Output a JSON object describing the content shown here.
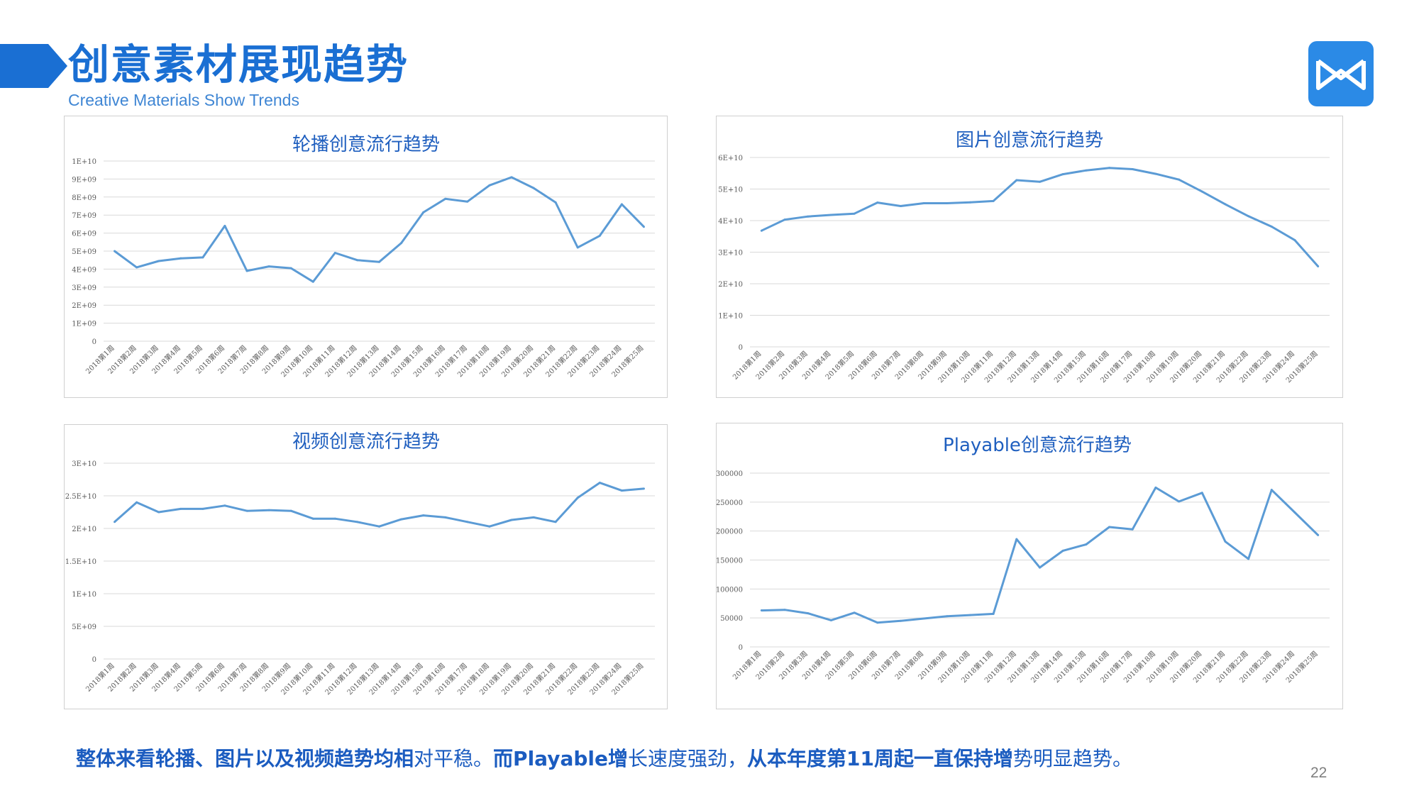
{
  "header": {
    "title": "创意素材展现趋势",
    "subtitle": "Creative Materials Show Trends"
  },
  "colors": {
    "accent": "#1a6fd3",
    "line": "#5b9bd5",
    "grid": "#d9d9d9",
    "logo": "#2b8ae6"
  },
  "footer": {
    "summary_a": "整体来看轮播、图片以及视频趋势均",
    "summary_b": "相",
    "summary_c": "对平稳。",
    "summary_d": "而Playable增",
    "summary_e": "长速度强劲，",
    "summary_f": "从本年度第11周起一直保持增",
    "summary_g": "势明显趋势。",
    "page_number": "22"
  },
  "chart_data": [
    {
      "type": "line",
      "title": "轮播创意流行趋势",
      "categories": [
        "2018第1周",
        "2018第2周",
        "2018第3周",
        "2018第4周",
        "2018第5周",
        "2018第6周",
        "2018第7周",
        "2018第8周",
        "2018第9周",
        "2018第10周",
        "2018第11周",
        "2018第12周",
        "2018第13周",
        "2018第14周",
        "2018第15周",
        "2018第16周",
        "2018第17周",
        "2018第18周",
        "2018第19周",
        "2018第20周",
        "2018第21周",
        "2018第22周",
        "2018第23周",
        "2018第24周",
        "2018第25周"
      ],
      "values": [
        5000000000,
        4100000000,
        4450000000,
        4600000000,
        4650000000,
        6400000000,
        3900000000,
        4150000000,
        4050000000,
        3300000000,
        4900000000,
        4500000000,
        4400000000,
        5450000000,
        7150000000,
        7900000000,
        7750000000,
        8650000000,
        9100000000,
        8500000000,
        7700000000,
        5200000000,
        5850000000,
        7600000000,
        6350000000
      ],
      "ylim": [
        0,
        10000000000
      ],
      "yticks": [
        "0",
        "1E+09",
        "2E+09",
        "3E+09",
        "4E+09",
        "5E+09",
        "6E+09",
        "7E+09",
        "8E+09",
        "9E+09",
        "1E+10"
      ],
      "grid": true
    },
    {
      "type": "line",
      "title": "图片创意流行趋势",
      "categories": [
        "2018第1周",
        "2018第2周",
        "2018第3周",
        "2018第4周",
        "2018第5周",
        "2018第6周",
        "2018第7周",
        "2018第8周",
        "2018第9周",
        "2018第10周",
        "2018第11周",
        "2018第12周",
        "2018第13周",
        "2018第14周",
        "2018第15周",
        "2018第16周",
        "2018第17周",
        "2018第18周",
        "2018第19周",
        "2018第20周",
        "2018第21周",
        "2018第22周",
        "2018第23周",
        "2018第24周",
        "2018第25周"
      ],
      "values": [
        36800000000,
        40300000000,
        41300000000,
        41800000000,
        42200000000,
        45700000000,
        44600000000,
        45500000000,
        45500000000,
        45800000000,
        46200000000,
        52800000000,
        52300000000,
        54700000000,
        55900000000,
        56700000000,
        56300000000,
        54800000000,
        53000000000,
        49200000000,
        45200000000,
        41400000000,
        38100000000,
        33800000000,
        25500000000
      ],
      "ylim": [
        0,
        60000000000
      ],
      "yticks": [
        "0",
        "1E+10",
        "2E+10",
        "3E+10",
        "4E+10",
        "5E+10",
        "6E+10"
      ],
      "grid": true
    },
    {
      "type": "line",
      "title": "视频创意流行趋势",
      "categories": [
        "2018第1周",
        "2018第2周",
        "2018第3周",
        "2018第4周",
        "2018第5周",
        "2018第6周",
        "2018第7周",
        "2018第8周",
        "2018第9周",
        "2018第10周",
        "2018第11周",
        "2018第12周",
        "2018第13周",
        "2018第14周",
        "2018第15周",
        "2018第16周",
        "2018第17周",
        "2018第18周",
        "2018第19周",
        "2018第20周",
        "2018第21周",
        "2018第22周",
        "2018第23周",
        "2018第24周",
        "2018第25周"
      ],
      "values": [
        21000000000,
        24000000000,
        22500000000,
        23000000000,
        23000000000,
        23500000000,
        22700000000,
        22800000000,
        22700000000,
        21500000000,
        21500000000,
        21000000000,
        20300000000,
        21400000000,
        22000000000,
        21700000000,
        21000000000,
        20300000000,
        21300000000,
        21700000000,
        21000000000,
        24700000000,
        27000000000,
        25800000000,
        26100000000
      ],
      "ylim": [
        0,
        30000000000
      ],
      "yticks": [
        "0",
        "5E+09",
        "1E+10",
        "1.5E+10",
        "2E+10",
        "2.5E+10",
        "3E+10"
      ],
      "grid": true
    },
    {
      "type": "line",
      "title": "Playable创意流行趋势",
      "categories": [
        "2018第1周",
        "2018第2周",
        "2018第3周",
        "2018第4周",
        "2018第5周",
        "2018第6周",
        "2018第7周",
        "2018第8周",
        "2018第9周",
        "2018第10周",
        "2018第11周",
        "2018第12周",
        "2018第13周",
        "2018第14周",
        "2018第15周",
        "2018第16周",
        "2018第17周",
        "2018第18周",
        "2018第19周",
        "2018第20周",
        "2018第21周",
        "2018第22周",
        "2018第23周",
        "2018第24周",
        "2018第25周"
      ],
      "values": [
        63000,
        64000,
        58000,
        46000,
        59000,
        42000,
        45000,
        49000,
        53000,
        55000,
        57000,
        186000,
        137000,
        166000,
        177000,
        207000,
        203000,
        275000,
        251000,
        266000,
        182000,
        152000,
        271000,
        232000,
        193000
      ],
      "ylim": [
        0,
        300000
      ],
      "yticks": [
        "0",
        "50000",
        "100000",
        "150000",
        "200000",
        "250000",
        "300000"
      ],
      "grid": true
    }
  ]
}
